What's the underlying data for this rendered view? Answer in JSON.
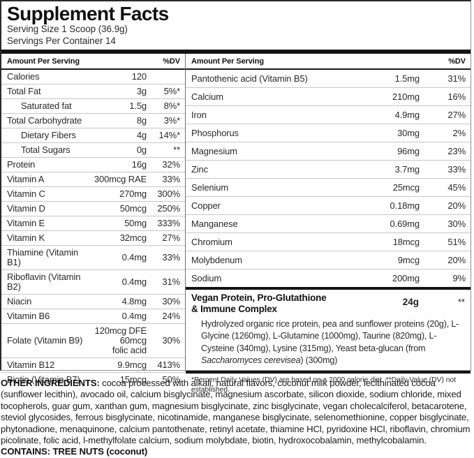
{
  "colors": {
    "bar": "#141414",
    "divider": "#c6c6c6",
    "text": "#1e1e1e"
  },
  "header": {
    "title": "Supplement Facts",
    "serving_size": "Serving Size 1 Scoop (36.9g)",
    "servings_per_container": "Servings Per Container 14"
  },
  "column_headers": {
    "amount": "Amount Per Serving",
    "dv": "%DV"
  },
  "left_rows": [
    {
      "name": "Calories",
      "amount": "120",
      "dv": "",
      "indent": false
    },
    {
      "name": "Total Fat",
      "amount": "3g",
      "dv": "5%*",
      "indent": false
    },
    {
      "name": "Saturated fat",
      "amount": "1.5g",
      "dv": "8%*",
      "indent": true
    },
    {
      "name": "Total Carbohydrate",
      "amount": "8g",
      "dv": "3%*",
      "indent": false
    },
    {
      "name": "Dietary Fibers",
      "amount": "4g",
      "dv": "14%*",
      "indent": true
    },
    {
      "name": "Total Sugars",
      "amount": "0g",
      "dv": "**",
      "indent": true
    },
    {
      "name": "Protein",
      "amount": "16g",
      "dv": "32%",
      "indent": false
    },
    {
      "name": "Vitamin A",
      "amount": "300mcg RAE",
      "dv": "33%",
      "indent": false
    },
    {
      "name": "Vitamin C",
      "amount": "270mg",
      "dv": "300%",
      "indent": false
    },
    {
      "name": "Vitamin D",
      "amount": "50mcg",
      "dv": "250%",
      "indent": false
    },
    {
      "name": "Vitamin E",
      "amount": "50mg",
      "dv": "333%",
      "indent": false
    },
    {
      "name": "Vitamin K",
      "amount": "32mcg",
      "dv": "27%",
      "indent": false
    },
    {
      "name": "Thiamine (Vitamin B1)",
      "amount": "0.4mg",
      "dv": "33%",
      "indent": false
    },
    {
      "name": "Riboflavin (Vitamin B2)",
      "amount": "0.4mg",
      "dv": "31%",
      "indent": false
    },
    {
      "name": "Niacin",
      "amount": "4.8mg",
      "dv": "30%",
      "indent": false
    },
    {
      "name": "Vitamin B6",
      "amount": "0.4mg",
      "dv": "24%",
      "indent": false
    },
    {
      "name": "Folate (Vitamin B9)",
      "amount": "120mcg DFE\n60mcg\nfolic acid",
      "dv": "30%",
      "indent": false
    },
    {
      "name": "Vitamin B12",
      "amount": "9.9mcg",
      "dv": "413%",
      "indent": false
    },
    {
      "name": "Biotin (Vitamin B7)",
      "amount": "15mcg",
      "dv": "50%",
      "indent": false
    }
  ],
  "right_rows": [
    {
      "name": "Pantothenic acid (Vitamin B5)",
      "amount": "1.5mg",
      "dv": "31%",
      "indent": false
    },
    {
      "name": "Calcium",
      "amount": "210mg",
      "dv": "16%",
      "indent": false
    },
    {
      "name": "Iron",
      "amount": "4.9mg",
      "dv": "27%",
      "indent": false
    },
    {
      "name": "Phosphorus",
      "amount": "30mg",
      "dv": "2%",
      "indent": false
    },
    {
      "name": "Magnesium",
      "amount": "96mg",
      "dv": "23%",
      "indent": false
    },
    {
      "name": "Zinc",
      "amount": "3.7mg",
      "dv": "33%",
      "indent": false
    },
    {
      "name": "Selenium",
      "amount": "25mcg",
      "dv": "45%",
      "indent": false
    },
    {
      "name": "Copper",
      "amount": "0.18mg",
      "dv": "20%",
      "indent": false
    },
    {
      "name": "Manganese",
      "amount": "0.69mg",
      "dv": "30%",
      "indent": false
    },
    {
      "name": "Chromium",
      "amount": "18mcg",
      "dv": "51%",
      "indent": false
    },
    {
      "name": "Molybdenum",
      "amount": "9mcg",
      "dv": "20%",
      "indent": false
    },
    {
      "name": "Sodium",
      "amount": "200mg",
      "dv": "9%",
      "indent": false
    }
  ],
  "complex": {
    "name_line1": "Vegan Protein, Pro-Glutathione",
    "name_line2": "& Immune Complex",
    "amount": "24g",
    "dv": "**",
    "desc_part1": "Hydrolyzed organic rice protein, pea and sunflower proteins (20g), L-Glycine (1260mg), L-Glutamine (1000mg), Taurine (820mg), L-Cysteine (340mg), Lysine (315mg), Yeast beta-glucan (from ",
    "desc_italic": "Saccharomyces cerevisea",
    "desc_part2": ") (300mg)"
  },
  "footnote": "*Percent Daily Values (DV) are based on a 2000 calorie diet. **Daily Value (DV) not established.",
  "other_ingredients": {
    "label": "OTHER INGREDIENTS:",
    "text": " cocoa processed with alkali, natural flavors, coconut milk powder, lecithinated cocoa (sunflower lecithin), avocado oil, calcium bisglycinate,  magnesium ascorbate, silicon dioxide, sodium chloride, mixed tocopherols, guar gum, xanthan gum, magnesium bisglycinate, zinc bisglycinate, vegan cholecalciferol, betacarotene, steviol glycosides, ferrous bisglycinate, nicotinamide, manganese bisglycinate, selenomethionine, copper bisglycinate, phytonadione, menaquinone, calcium pantothenate, retinyl acetate, thiamine HCl, pyridoxine HCl, riboflavin, chromium picolinate, folic acid, l-methylfolate calcium, sodium molybdate, biotin, hydroxocobalamin, methylcobalamin. ",
    "contains": "CONTAINS: TREE NUTS (coconut)"
  }
}
